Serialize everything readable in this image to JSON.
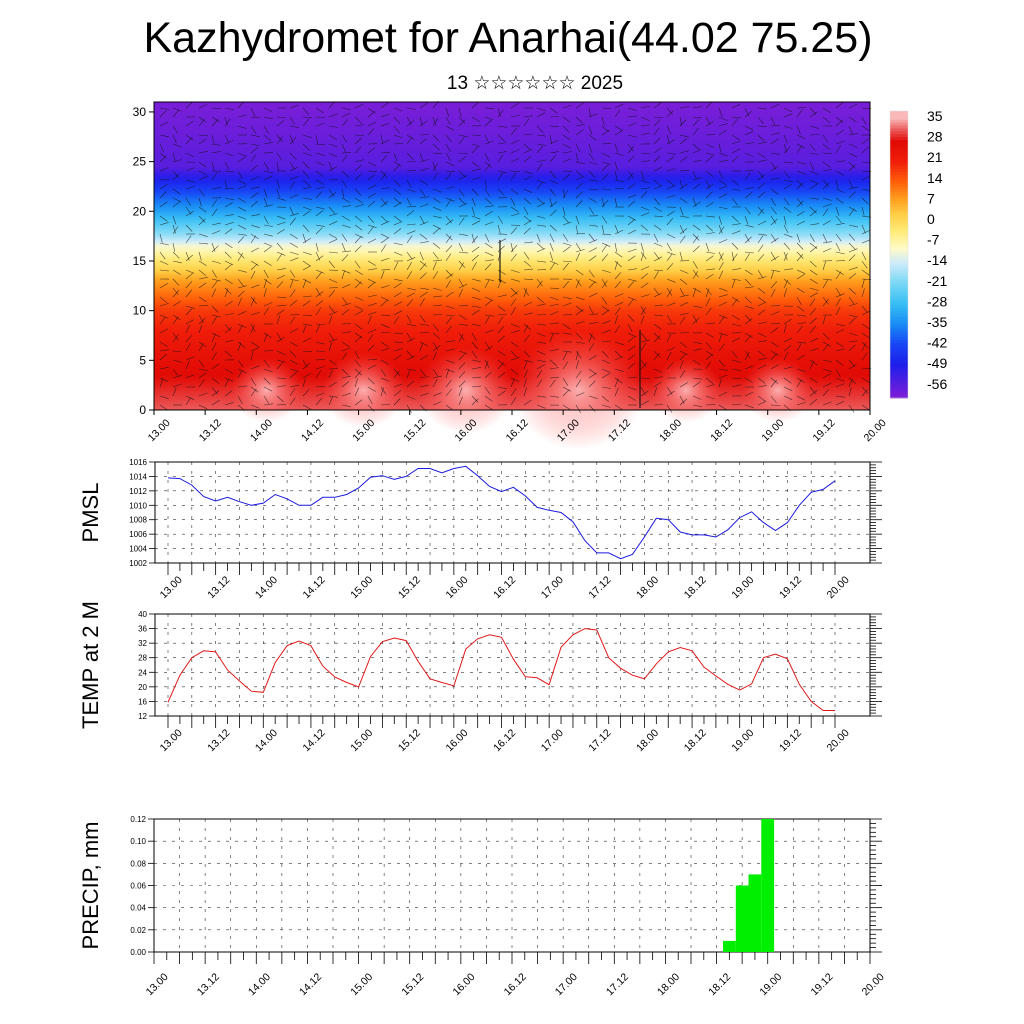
{
  "header": {
    "title": "Kazhydromet for Anarhai(44.02 75.25)",
    "subtitle": "13 ☆☆☆☆☆☆ 2025"
  },
  "time_labels": [
    "13.00",
    "13.12",
    "14.00",
    "14.12",
    "15.00",
    "15.12",
    "16.00",
    "16.12",
    "17.00",
    "17.12",
    "18.00",
    "18.12",
    "19.00",
    "19.12",
    "20.00"
  ],
  "colors": {
    "pmsl_line": "#1a1adf",
    "temp_line": "#e01818",
    "precip_bar": "#00ee00"
  },
  "chart_data": [
    {
      "type": "heatmap",
      "title": "Kazhydromet for Anarhai(44.02 75.25)",
      "x_labels": [
        "13.00",
        "13.12",
        "14.00",
        "14.12",
        "15.00",
        "15.12",
        "16.00",
        "16.12",
        "17.00",
        "17.12",
        "18.00",
        "18.12",
        "19.00",
        "19.12",
        "20.00"
      ],
      "ylim": [
        0,
        31
      ],
      "y_ticks": [
        0,
        5,
        10,
        15,
        20,
        25,
        30
      ],
      "colorbar_labels": [
        35,
        28,
        21,
        14,
        7,
        0,
        -7,
        -14,
        -21,
        -28,
        -35,
        -42,
        -49,
        -56
      ],
      "vertical_temperature_profile": [
        {
          "level": 0,
          "value": 32
        },
        {
          "level": 5,
          "value": 26
        },
        {
          "level": 10,
          "value": 18
        },
        {
          "level": 13,
          "value": 8
        },
        {
          "level": 15,
          "value": -2
        },
        {
          "level": 16.5,
          "value": -10
        },
        {
          "level": 17.5,
          "value": -18
        },
        {
          "level": 20,
          "value": -32
        },
        {
          "level": 22.5,
          "value": -45
        },
        {
          "level": 24.5,
          "value": -56
        },
        {
          "level": 27.5,
          "value": -58
        },
        {
          "level": 31,
          "value": -60
        }
      ],
      "warm_cores": [
        {
          "x": 17.15,
          "level": 2,
          "value": 36
        },
        {
          "x": 16.05,
          "level": 2,
          "value": 33
        },
        {
          "x": 15.05,
          "level": 2,
          "value": 32
        },
        {
          "x": 14.1,
          "level": 2,
          "value": 31
        },
        {
          "x": 18.2,
          "level": 2,
          "value": 31
        },
        {
          "x": 19.1,
          "level": 2,
          "value": 31
        }
      ],
      "vectors": "wind barbs overlay",
      "grid": false
    },
    {
      "type": "line",
      "ylabel": "PMSL",
      "x_labels": [
        "13.00",
        "13.12",
        "14.00",
        "14.12",
        "15.00",
        "15.12",
        "16.00",
        "16.12",
        "17.00",
        "17.12",
        "18.00",
        "18.12",
        "19.00",
        "19.12",
        "20.00"
      ],
      "ylim": [
        1002,
        1016
      ],
      "y_ticks": [
        1002,
        1004,
        1006,
        1008,
        1010,
        1012,
        1014,
        1016
      ],
      "grid": true,
      "x": [
        0,
        1,
        2,
        3,
        4,
        5,
        6,
        7,
        8,
        9,
        10,
        11,
        12,
        13,
        14,
        15,
        16,
        17,
        18,
        19,
        20,
        21,
        22,
        23,
        24,
        25,
        26,
        27,
        28,
        29,
        30,
        31,
        32,
        33,
        34,
        35,
        36,
        37,
        38,
        39,
        40,
        41,
        42,
        43,
        44,
        45,
        46,
        47,
        48,
        49,
        50,
        51,
        52,
        53,
        54,
        55,
        56
      ],
      "values": [
        1013.8,
        1013.7,
        1012.8,
        1011.2,
        1010.6,
        1011.1,
        1010.5,
        1010.0,
        1010.3,
        1011.5,
        1010.9,
        1010.0,
        1010.0,
        1011.1,
        1011.1,
        1011.5,
        1012.4,
        1013.9,
        1014.1,
        1013.6,
        1014.0,
        1015.1,
        1015.1,
        1014.5,
        1015.1,
        1015.4,
        1014.1,
        1012.6,
        1011.9,
        1012.5,
        1011.3,
        1009.7,
        1009.3,
        1009.0,
        1007.7,
        1005.1,
        1003.4,
        1003.4,
        1002.6,
        1003.2,
        1005.6,
        1008.2,
        1008.0,
        1006.3,
        1005.9,
        1005.9,
        1005.6,
        1006.6,
        1008.3,
        1009.1,
        1007.6,
        1006.5,
        1007.6,
        1010.0,
        1011.8,
        1012.2,
        1013.4
      ]
    },
    {
      "type": "line",
      "ylabel": "TEMP at 2 M",
      "x_labels": [
        "13.00",
        "13.12",
        "14.00",
        "14.12",
        "15.00",
        "15.12",
        "16.00",
        "16.12",
        "17.00",
        "17.12",
        "18.00",
        "18.12",
        "19.00",
        "19.12",
        "20.00"
      ],
      "ylim": [
        12,
        40
      ],
      "y_ticks": [
        12,
        16,
        20,
        24,
        28,
        32,
        36,
        40
      ],
      "grid": true,
      "x": [
        0,
        1,
        2,
        3,
        4,
        5,
        6,
        7,
        8,
        9,
        10,
        11,
        12,
        13,
        14,
        15,
        16,
        17,
        18,
        19,
        20,
        21,
        22,
        23,
        24,
        25,
        26,
        27,
        28,
        29,
        30,
        31,
        32,
        33,
        34,
        35,
        36,
        37,
        38,
        39,
        40,
        41,
        42,
        43,
        44,
        45,
        46,
        47,
        48,
        49,
        50,
        51,
        52,
        53,
        54,
        55,
        56
      ],
      "values": [
        15.8,
        23.2,
        28.0,
        29.9,
        29.6,
        24.6,
        21.6,
        18.8,
        18.5,
        26.7,
        31.3,
        32.6,
        31.3,
        25.7,
        22.7,
        21.2,
        20.0,
        28.3,
        32.4,
        33.4,
        32.7,
        27.0,
        22.2,
        21.2,
        20.3,
        30.4,
        33.2,
        34.3,
        33.6,
        27.6,
        22.8,
        22.5,
        20.6,
        30.9,
        34.3,
        36.0,
        35.6,
        28.0,
        25.1,
        23.2,
        22.2,
        26.3,
        29.6,
        30.8,
        29.9,
        25.4,
        23.0,
        20.7,
        19.1,
        20.8,
        28.0,
        29.0,
        27.7,
        20.7,
        16.0,
        13.5,
        13.5
      ]
    },
    {
      "type": "bar",
      "ylabel": "PRECIP, mm",
      "x_labels": [
        "13.00",
        "13.12",
        "14.00",
        "14.12",
        "15.00",
        "15.12",
        "16.00",
        "16.12",
        "17.00",
        "17.12",
        "18.00",
        "18.12",
        "19.00",
        "19.12",
        "20.00"
      ],
      "ylim": [
        0,
        0.12
      ],
      "y_ticks": [
        0.0,
        0.02,
        0.04,
        0.06,
        0.08,
        0.1,
        0.12
      ],
      "y_tick_labels": [
        "0.00",
        "0.02",
        "0.04",
        "0.06",
        "0.08",
        "0.10",
        "0.12"
      ],
      "grid": true,
      "x": [
        45,
        46,
        47,
        48
      ],
      "values": [
        0.01,
        0.06,
        0.07,
        0.12
      ]
    }
  ]
}
